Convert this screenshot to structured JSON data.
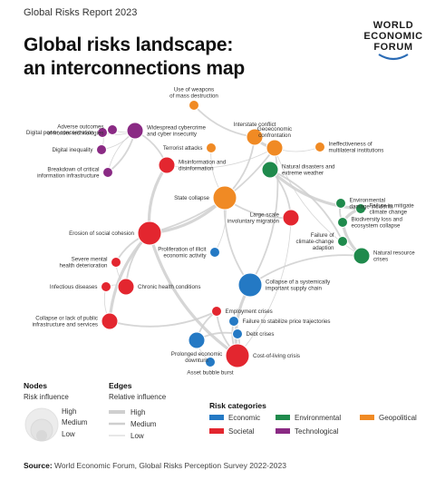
{
  "header": {
    "report": "Global Risks Report 2023",
    "title_line1": "Global risks landscape:",
    "title_line2": "an interconnections map"
  },
  "logo": {
    "line1": "WORLD",
    "line2": "ECONOMIC",
    "line3": "FORUM"
  },
  "colors": {
    "economic": "#2479c4",
    "environmental": "#1f8a4c",
    "geopolitical": "#f08a24",
    "societal": "#e3262f",
    "technological": "#8a2a84",
    "edge": "#cfcfcf"
  },
  "nodes": [
    {
      "id": "adverse-tech",
      "label": [
        "Adverse outcomes",
        "of frontier technologies"
      ],
      "cat": "technological",
      "size": "low"
    },
    {
      "id": "digital-power",
      "label": [
        "Digital power concentration"
      ],
      "cat": "technological",
      "size": "low"
    },
    {
      "id": "digital-inequality",
      "label": [
        "Digital inequality"
      ],
      "cat": "technological",
      "size": "low"
    },
    {
      "id": "cyber",
      "label": [
        "Widespread cybercrime",
        "and cyber insecurity"
      ],
      "cat": "technological",
      "size": "medium"
    },
    {
      "id": "critical-infra",
      "label": [
        "Breakdown of critical",
        "information infrastructure"
      ],
      "cat": "technological",
      "size": "low"
    },
    {
      "id": "wmd",
      "label": [
        "Use of weapons",
        "of mass destruction"
      ],
      "cat": "geopolitical",
      "size": "low"
    },
    {
      "id": "interstate",
      "label": [
        "Interstate conflict"
      ],
      "cat": "geopolitical",
      "size": "medium"
    },
    {
      "id": "geoeconomic",
      "label": [
        "Geoeconomic",
        "confrontation"
      ],
      "cat": "geopolitical",
      "size": "medium"
    },
    {
      "id": "multilateral",
      "label": [
        "Ineffectiveness of",
        "multilateral institutions"
      ],
      "cat": "geopolitical",
      "size": "low"
    },
    {
      "id": "terrorist",
      "label": [
        "Terrorist attacks"
      ],
      "cat": "geopolitical",
      "size": "low"
    },
    {
      "id": "state-collapse",
      "label": [
        "State collapse"
      ],
      "cat": "geopolitical",
      "size": "high"
    },
    {
      "id": "misinformation",
      "label": [
        "Misinformation and",
        "disinformation"
      ],
      "cat": "societal",
      "size": "medium"
    },
    {
      "id": "erosion",
      "label": [
        "Erosion of social cohesion"
      ],
      "cat": "societal",
      "size": "high"
    },
    {
      "id": "mental-health",
      "label": [
        "Severe mental",
        "health deterioration"
      ],
      "cat": "societal",
      "size": "low"
    },
    {
      "id": "infectious",
      "label": [
        "Infectious diseases"
      ],
      "cat": "societal",
      "size": "low"
    },
    {
      "id": "chronic",
      "label": [
        "Chronic health conditions"
      ],
      "cat": "societal",
      "size": "medium"
    },
    {
      "id": "public-infra",
      "label": [
        "Collapse or lack of public",
        "infrastructure and services"
      ],
      "cat": "societal",
      "size": "medium"
    },
    {
      "id": "migration",
      "label": [
        "Large-scale",
        "involuntary migration"
      ],
      "cat": "societal",
      "size": "medium"
    },
    {
      "id": "employment",
      "label": [
        "Employment crises"
      ],
      "cat": "societal",
      "size": "low"
    },
    {
      "id": "cost-living",
      "label": [
        "Cost-of-living crisis"
      ],
      "cat": "societal",
      "size": "high"
    },
    {
      "id": "illicit",
      "label": [
        "Proliferation of illicit",
        "economic activity"
      ],
      "cat": "economic",
      "size": "low"
    },
    {
      "id": "supply-chain",
      "label": [
        "Collapse of a systemically",
        "important supply chain"
      ],
      "cat": "economic",
      "size": "high"
    },
    {
      "id": "price",
      "label": [
        "Failure to stabilize price trajectories"
      ],
      "cat": "economic",
      "size": "low"
    },
    {
      "id": "debt",
      "label": [
        "Debt crises"
      ],
      "cat": "economic",
      "size": "low"
    },
    {
      "id": "downturn",
      "label": [
        "Prolonged economic",
        "downturn"
      ],
      "cat": "economic",
      "size": "medium"
    },
    {
      "id": "bubble",
      "label": [
        "Asset bubble burst"
      ],
      "cat": "economic",
      "size": "low"
    },
    {
      "id": "natural-disasters",
      "label": [
        "Natural disasters and",
        "extreme weather"
      ],
      "cat": "environmental",
      "size": "medium"
    },
    {
      "id": "env-damage",
      "label": [
        "Environmental",
        "damage incidents"
      ],
      "cat": "environmental",
      "size": "low"
    },
    {
      "id": "climate-mitigation",
      "label": [
        "Failure to mitigate",
        "climate change"
      ],
      "cat": "environmental",
      "size": "low"
    },
    {
      "id": "biodiversity",
      "label": [
        "Biodiversity loss and",
        "ecosystem collapse"
      ],
      "cat": "environmental",
      "size": "low"
    },
    {
      "id": "climate-adaptation",
      "label": [
        "Failure of",
        "climate-change",
        "adaption"
      ],
      "cat": "environmental",
      "size": "low"
    },
    {
      "id": "natural-resource",
      "label": [
        "Natural resource",
        "crises"
      ],
      "cat": "environmental",
      "size": "medium"
    }
  ],
  "edges": [
    [
      "adverse-tech",
      "cyber",
      "low"
    ],
    [
      "digital-power",
      "cyber",
      "low"
    ],
    [
      "digital-inequality",
      "cyber",
      "low"
    ],
    [
      "critical-infra",
      "cyber",
      "medium"
    ],
    [
      "digital-inequality",
      "digital-power",
      "low"
    ],
    [
      "misinformation",
      "cyber",
      "medium"
    ],
    [
      "misinformation",
      "erosion",
      "high"
    ],
    [
      "erosion",
      "state-collapse",
      "high"
    ],
    [
      "state-collapse",
      "interstate",
      "medium"
    ],
    [
      "interstate",
      "geoeconomic",
      "high"
    ],
    [
      "geoeconomic",
      "multilateral",
      "low"
    ],
    [
      "wmd",
      "interstate",
      "medium"
    ],
    [
      "terrorist",
      "state-collapse",
      "low"
    ],
    [
      "state-collapse",
      "migration",
      "medium"
    ],
    [
      "migration",
      "natural-disasters",
      "medium"
    ],
    [
      "natural-disasters",
      "climate-mitigation",
      "high"
    ],
    [
      "climate-mitigation",
      "biodiversity",
      "high"
    ],
    [
      "biodiversity",
      "natural-resource",
      "high"
    ],
    [
      "climate-adaptation",
      "natural-disasters",
      "medium"
    ],
    [
      "env-damage",
      "biodiversity",
      "medium"
    ],
    [
      "natural-resource",
      "supply-chain",
      "medium"
    ],
    [
      "supply-chain",
      "cost-living",
      "high"
    ],
    [
      "cost-living",
      "debt",
      "medium"
    ],
    [
      "debt",
      "downturn",
      "medium"
    ],
    [
      "downturn",
      "bubble",
      "low"
    ],
    [
      "employment",
      "cost-living",
      "medium"
    ],
    [
      "price",
      "cost-living",
      "medium"
    ],
    [
      "erosion",
      "mental-health",
      "medium"
    ],
    [
      "erosion",
      "chronic",
      "medium"
    ],
    [
      "chronic",
      "infectious",
      "low"
    ],
    [
      "erosion",
      "public-infra",
      "high"
    ],
    [
      "public-infra",
      "employment",
      "medium"
    ],
    [
      "erosion",
      "cost-living",
      "high"
    ],
    [
      "illicit",
      "state-collapse",
      "low"
    ],
    [
      "supply-chain",
      "geoeconomic",
      "medium"
    ],
    [
      "misinformation",
      "geoeconomic",
      "low"
    ],
    [
      "erosion",
      "geoeconomic",
      "medium"
    ],
    [
      "mental-health",
      "chronic",
      "low"
    ],
    [
      "employment",
      "downturn",
      "medium"
    ],
    [
      "cost-living",
      "migration",
      "low"
    ],
    [
      "state-collapse",
      "supply-chain",
      "medium"
    ],
    [
      "geoeconomic",
      "natural-resource",
      "low"
    ],
    [
      "cyber",
      "critical-infra",
      "low"
    ],
    [
      "infectious",
      "public-infra",
      "low"
    ]
  ],
  "legend": {
    "nodes_title": "Nodes",
    "nodes_sub": "Risk influence",
    "edges_title": "Edges",
    "edges_sub": "Relative influence",
    "levels": [
      "High",
      "Medium",
      "Low"
    ],
    "categories_title": "Risk categories",
    "categories": [
      {
        "key": "economic",
        "label": "Economic"
      },
      {
        "key": "environmental",
        "label": "Environmental"
      },
      {
        "key": "geopolitical",
        "label": "Geopolitical"
      },
      {
        "key": "societal",
        "label": "Societal"
      },
      {
        "key": "technological",
        "label": "Technological"
      }
    ]
  },
  "source": {
    "label": "Source:",
    "text": " World Economic Forum, Global Risks Perception Survey 2022-2023"
  }
}
